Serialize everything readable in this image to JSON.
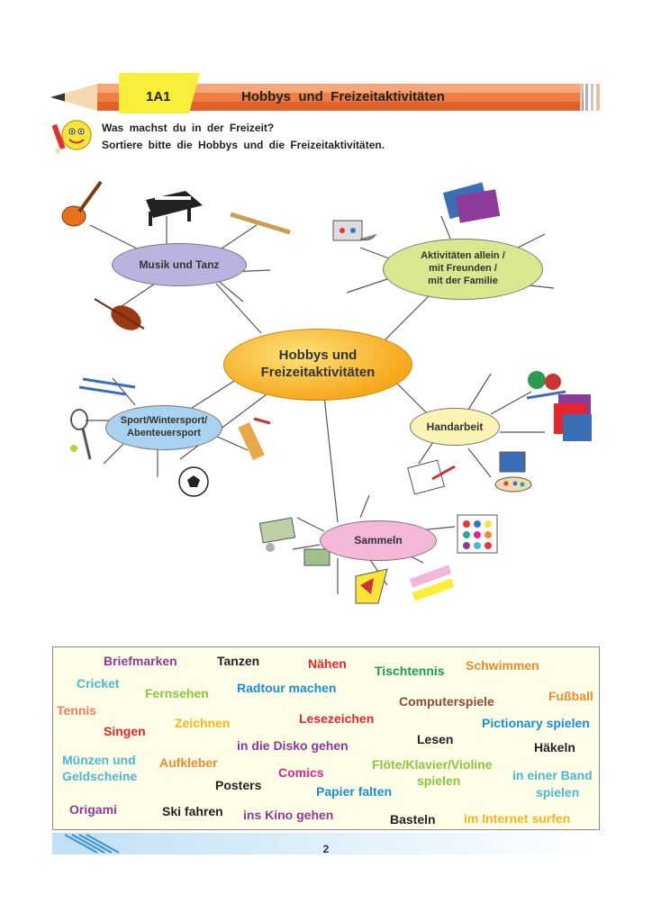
{
  "header": {
    "lesson_code": "1A1",
    "title": "Hobbys  und  Freizeitaktivitäten"
  },
  "instructions": {
    "line1": "Was machst du in der Freizeit?",
    "line2": "Sortiere bitte die Hobbys und die Freizeitaktivitäten."
  },
  "mindmap": {
    "center": "Hobbys und Freizeitaktivitäten",
    "music": "Musik und Tanz",
    "activities": [
      "Aktivitäten allein /",
      "mit Freunden /",
      "mit der Familie"
    ],
    "sport": [
      "Sport/Wintersport/",
      "Abenteuersport"
    ],
    "handcraft": "Handarbeit",
    "collecting": "Sammeln",
    "colors": {
      "center": "#f6a81c",
      "music": "#b9b3e0",
      "activities": "#d9e88e",
      "sport": "#a9d2f0",
      "handcraft": "#fbf3b4",
      "collecting": "#f2b7d9"
    }
  },
  "words": [
    {
      "text": "Briefmarken",
      "color": "#8e3a9a"
    },
    {
      "text": "Tanzen",
      "color": "#222222"
    },
    {
      "text": "Nähen",
      "color": "#e6252d"
    },
    {
      "text": "Tischtennis",
      "color": "#1a9a52"
    },
    {
      "text": "Schwimmen",
      "color": "#f08a2a"
    },
    {
      "text": "Cricket",
      "color": "#4bb8d0"
    },
    {
      "text": "Fernsehen",
      "color": "#8cc63f"
    },
    {
      "text": "Radtour machen",
      "color": "#1a8fd6"
    },
    {
      "text": "Computerspiele",
      "color": "#8b4a3a"
    },
    {
      "text": "Fußball",
      "color": "#f08a2a"
    },
    {
      "text": "Tennis",
      "color": "#f47a5e"
    },
    {
      "text": "Singen",
      "color": "#e6252d"
    },
    {
      "text": "Zeichnen",
      "color": "#f5b519"
    },
    {
      "text": "Lesezeichen",
      "color": "#e6252d"
    },
    {
      "text": "Pictionary spielen",
      "color": "#1a8fd6"
    },
    {
      "text": "Lesen",
      "color": "#222222"
    },
    {
      "text": "in die Disko gehen",
      "color": "#8e3a9a"
    },
    {
      "text": "Häkeln",
      "color": "#222222"
    },
    {
      "text": "Münzen und",
      "color": "#4bb8d0"
    },
    {
      "text": "Geldscheine",
      "color": "#4bb8d0"
    },
    {
      "text": "Aufkleber",
      "color": "#f08a2a"
    },
    {
      "text": "Comics",
      "color": "#e6258a"
    },
    {
      "text": "Flöte/Klavier/Violine",
      "color": "#8cc63f"
    },
    {
      "text": "spielen",
      "color": "#8cc63f"
    },
    {
      "text": "in einer Band",
      "color": "#4bb8d0"
    },
    {
      "text": "spielen",
      "color": "#4bb8d0"
    },
    {
      "text": "Posters",
      "color": "#222222"
    },
    {
      "text": "Papier falten",
      "color": "#1a8fd6"
    },
    {
      "text": "Origami",
      "color": "#8e3a9a"
    },
    {
      "text": "Ski fahren",
      "color": "#222222"
    },
    {
      "text": "ins Kino gehen",
      "color": "#8e3a9a"
    },
    {
      "text": "Basteln",
      "color": "#222222"
    },
    {
      "text": "im Internet surfen",
      "color": "#f5b519"
    }
  ],
  "page_number": "2"
}
